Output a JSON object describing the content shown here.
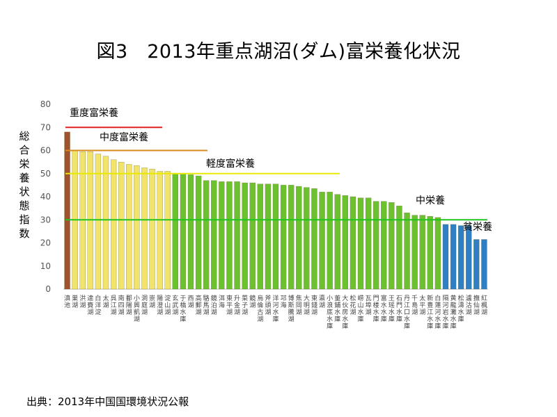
{
  "title": "図3　2013年重点湖沼(ダム)富栄養化状況",
  "source": "出典：2013年中国国環境状況公報",
  "chart_data": {
    "type": "bar",
    "title": "図3　2013年重点湖沼(ダム)富栄養化状況",
    "ylabel": "総合栄養状態指数",
    "xlabel": "",
    "ylim": [
      0,
      80
    ],
    "yticks": [
      0,
      10,
      20,
      30,
      40,
      50,
      60,
      70,
      80
    ],
    "grid": false,
    "categories": [
      "滇池",
      "巣湖",
      "洪湖",
      "達賚湖",
      "白洋淀",
      "太湖",
      "呉江湖",
      "南四湖",
      "鄱陽湖",
      "小興凱湖",
      "洞庭湖",
      "崇湖",
      "陽澄湖",
      "淀山湖",
      "玄武湖",
      "于橋水庫",
      "西湖",
      "高郵湖",
      "駱馬湖",
      "鏡泊湖",
      "洱海",
      "東平湖",
      "升金湖",
      "菜子湖",
      "鏡湖",
      "烏倫古湖",
      "斧頭湖",
      "洋河水庫",
      "邛海",
      "博斯騰湖",
      "焦岡湖",
      "大明湖",
      "東錢湖",
      "瀛湖",
      "小浪底水庫",
      "董鋪水庫",
      "大伙房水庫",
      "松花湖",
      "崂山水庫",
      "瓦埠湖",
      "門楼水庫",
      "富水水庫",
      "王瑶水庫",
      "石門水庫",
      "丹江口水庫",
      "千島湖",
      "太平湖",
      "新豊江水庫",
      "白蓮河水庫",
      "隔河岩水庫",
      "黄龍灘水庫",
      "松濤水庫",
      "瀘沽湖",
      "撫仙湖",
      "紅楓湖"
    ],
    "values": [
      68,
      60,
      59.5,
      59.5,
      58.5,
      57.5,
      56,
      55,
      54,
      53.5,
      52.5,
      52,
      51,
      51,
      50,
      50,
      49.5,
      49,
      47,
      47,
      46.5,
      46.5,
      46.5,
      46,
      46,
      45.5,
      45.5,
      45.5,
      45,
      45,
      44.5,
      44,
      43.5,
      42,
      42,
      41,
      40.5,
      40,
      39.5,
      39.5,
      38,
      38,
      37.5,
      36,
      33,
      32,
      32,
      31.5,
      31,
      28,
      28,
      27.5,
      27.5,
      21.5,
      21.5
    ],
    "bar_colors": {
      "hyper": "#a0522d",
      "upper": "#f2e46a",
      "mid": "#6cc12e",
      "oligo": "#2e7fc4"
    },
    "reference_lines": [
      {
        "label": "重度富栄養",
        "value": 70,
        "color": "#e02020"
      },
      {
        "label": "中度富栄養",
        "value": 60,
        "color": "#d98a1c"
      },
      {
        "label": "軽度富栄養",
        "value": 50,
        "color": "#e8e800"
      },
      {
        "label": "中栄養",
        "value": 30,
        "color": "#1fc41f"
      },
      {
        "label": "貧栄養",
        "value": 30,
        "color": "#1fc41f"
      }
    ]
  }
}
